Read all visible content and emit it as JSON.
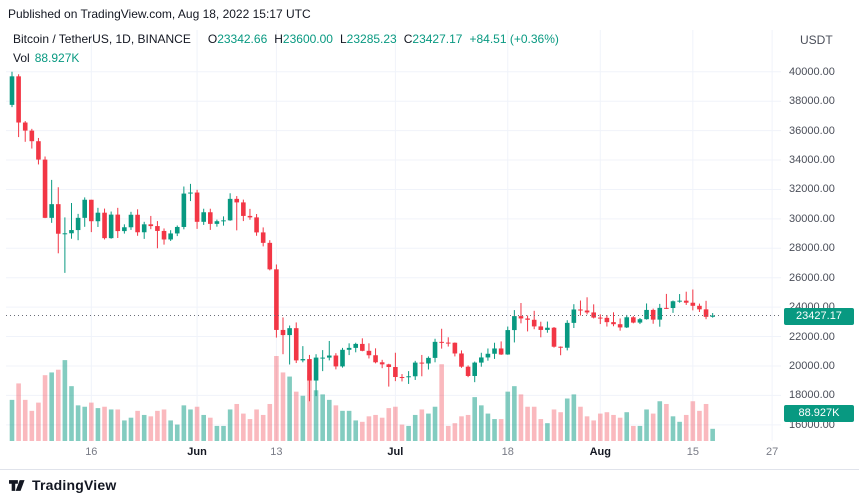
{
  "published_line": "Published on TradingView.com, Aug 18, 2022 15:17 UTC",
  "header": {
    "symbol_title": "Bitcoin / TetherUS, 1D, BINANCE",
    "ohlc": {
      "o_label": "O",
      "o": "23342.66",
      "h_label": "H",
      "h": "23600.00",
      "l_label": "L",
      "l": "23285.23",
      "c_label": "C",
      "c": "23427.17",
      "change": "+84.51 (+0.36%)"
    },
    "vol_label": "Vol",
    "vol_value": "88.927K",
    "quote_currency": "USDT"
  },
  "badges": {
    "last_price": "23427.17",
    "volume": "88.927K"
  },
  "footer": {
    "brand": "TradingView"
  },
  "colors": {
    "up": "#089981",
    "down": "#f23645",
    "vol_up": "rgba(8,153,129,0.50)",
    "vol_down": "rgba(242,54,69,0.35)",
    "grid": "#f0f3fa",
    "dotted_line": "#6a6d78",
    "axis_text": "#4a4e59",
    "badge_text": "#ffffff"
  },
  "chart_data": {
    "type": "candlestick",
    "title": "Bitcoin / TetherUS, 1D, BINANCE",
    "symbol": "BTC/USDT",
    "exchange": "BINANCE",
    "interval": "1D",
    "quote_currency": "USDT",
    "last_price": 23427.17,
    "last_volume_k": 88.927,
    "volume_units": "K",
    "y_axis": {
      "scale_min": 14900,
      "scale_max": 40800,
      "ticks": [
        {
          "value": 40000,
          "label": "40000.00"
        },
        {
          "value": 38000,
          "label": "38000.00"
        },
        {
          "value": 36000,
          "label": "36000.00"
        },
        {
          "value": 34000,
          "label": "34000.00"
        },
        {
          "value": 32000,
          "label": "32000.00"
        },
        {
          "value": 30000,
          "label": "30000.00"
        },
        {
          "value": 28000,
          "label": "28000.00"
        },
        {
          "value": 26000,
          "label": "26000.00"
        },
        {
          "value": 24000,
          "label": "24000.00"
        },
        {
          "value": 22000,
          "label": "22000.00"
        },
        {
          "value": 20000,
          "label": "20000.00"
        },
        {
          "value": 18000,
          "label": "18000.00"
        },
        {
          "value": 16000,
          "label": "16000.00"
        }
      ]
    },
    "x_ticks": [
      {
        "label": "16",
        "day_index": 12,
        "strong": false
      },
      {
        "label": "Jun",
        "day_index": 28,
        "strong": true
      },
      {
        "label": "13",
        "day_index": 40,
        "strong": false
      },
      {
        "label": "Jul",
        "day_index": 58,
        "strong": true
      },
      {
        "label": "18",
        "day_index": 75,
        "strong": false
      },
      {
        "label": "Aug",
        "day_index": 89,
        "strong": true
      },
      {
        "label": "15",
        "day_index": 103,
        "strong": false
      },
      {
        "label": "27",
        "day_index": 115,
        "strong": false
      }
    ],
    "columns": [
      "date",
      "open",
      "high",
      "low",
      "close",
      "volume_k"
    ],
    "candles": [
      [
        "2022-05-04",
        37750,
        40000,
        37600,
        39690,
        300
      ],
      [
        "2022-05-05",
        39690,
        39830,
        35560,
        36550,
        420
      ],
      [
        "2022-05-06",
        36550,
        36650,
        35240,
        36000,
        300
      ],
      [
        "2022-05-07",
        36000,
        36120,
        34780,
        35280,
        220
      ],
      [
        "2022-05-08",
        35280,
        35500,
        33700,
        34030,
        280
      ],
      [
        "2022-05-09",
        34030,
        34240,
        30050,
        30070,
        480
      ],
      [
        "2022-05-10",
        30070,
        32650,
        29730,
        31000,
        500
      ],
      [
        "2022-05-11",
        31000,
        32150,
        27660,
        28990,
        520
      ],
      [
        "2022-05-12",
        28990,
        30100,
        26330,
        29020,
        590
      ],
      [
        "2022-05-13",
        29020,
        31080,
        28650,
        29240,
        400
      ],
      [
        "2022-05-14",
        29240,
        30340,
        28550,
        30070,
        260
      ],
      [
        "2022-05-15",
        30070,
        31460,
        29460,
        31300,
        250
      ],
      [
        "2022-05-16",
        31300,
        31300,
        29100,
        29840,
        280
      ],
      [
        "2022-05-17",
        29840,
        30750,
        29450,
        30420,
        240
      ],
      [
        "2022-05-18",
        30420,
        30700,
        28600,
        28690,
        250
      ],
      [
        "2022-05-19",
        28690,
        30500,
        28650,
        30290,
        230
      ],
      [
        "2022-05-20",
        30290,
        30750,
        28700,
        29170,
        230
      ],
      [
        "2022-05-21",
        29170,
        29630,
        29000,
        29430,
        150
      ],
      [
        "2022-05-22",
        29430,
        30480,
        29250,
        30280,
        170
      ],
      [
        "2022-05-23",
        30280,
        30650,
        28850,
        29090,
        220
      ],
      [
        "2022-05-24",
        29090,
        29800,
        28640,
        29630,
        190
      ],
      [
        "2022-05-25",
        29630,
        30200,
        29300,
        29510,
        180
      ],
      [
        "2022-05-26",
        29510,
        29850,
        28000,
        29180,
        220
      ],
      [
        "2022-05-27",
        29180,
        29350,
        28250,
        28600,
        230
      ],
      [
        "2022-05-28",
        28600,
        29230,
        28500,
        29010,
        150
      ],
      [
        "2022-05-29",
        29010,
        29550,
        28830,
        29450,
        120
      ],
      [
        "2022-05-30",
        29450,
        32200,
        29290,
        31720,
        260
      ],
      [
        "2022-05-31",
        31720,
        32380,
        31210,
        31790,
        230
      ],
      [
        "2022-06-01",
        31790,
        31980,
        29320,
        29800,
        250
      ],
      [
        "2022-06-02",
        29800,
        30690,
        29590,
        30450,
        190
      ],
      [
        "2022-06-03",
        30450,
        30690,
        29250,
        29660,
        170
      ],
      [
        "2022-06-04",
        29660,
        29950,
        29470,
        29840,
        110
      ],
      [
        "2022-06-05",
        29840,
        30170,
        29540,
        29900,
        110
      ],
      [
        "2022-06-06",
        29900,
        31740,
        29870,
        31360,
        230
      ],
      [
        "2022-06-07",
        31360,
        31550,
        29220,
        31120,
        270
      ],
      [
        "2022-06-08",
        31120,
        31310,
        29850,
        30200,
        200
      ],
      [
        "2022-06-09",
        30200,
        30680,
        29940,
        30100,
        160
      ],
      [
        "2022-06-10",
        30100,
        30330,
        28850,
        29080,
        230
      ],
      [
        "2022-06-11",
        29080,
        29420,
        28130,
        28370,
        190
      ],
      [
        "2022-06-12",
        28370,
        28550,
        26500,
        26570,
        270
      ],
      [
        "2022-06-13",
        26570,
        26900,
        21930,
        22450,
        620
      ],
      [
        "2022-06-14",
        22450,
        23300,
        20800,
        22100,
        500
      ],
      [
        "2022-06-15",
        22100,
        22750,
        20100,
        22570,
        470
      ],
      [
        "2022-06-16",
        22570,
        22960,
        20200,
        20380,
        360
      ],
      [
        "2022-06-17",
        20380,
        21350,
        20250,
        20470,
        330
      ],
      [
        "2022-06-18",
        20470,
        20750,
        17600,
        19010,
        480
      ],
      [
        "2022-06-19",
        19010,
        20800,
        17950,
        20570,
        370
      ],
      [
        "2022-06-20",
        20570,
        21080,
        19650,
        20570,
        340
      ],
      [
        "2022-06-21",
        20570,
        21700,
        20380,
        20710,
        300
      ],
      [
        "2022-06-22",
        20710,
        20870,
        19770,
        19970,
        260
      ],
      [
        "2022-06-23",
        19970,
        21230,
        19890,
        21100,
        220
      ],
      [
        "2022-06-24",
        21100,
        21540,
        20740,
        21230,
        220
      ],
      [
        "2022-06-25",
        21230,
        21580,
        20930,
        21500,
        150
      ],
      [
        "2022-06-26",
        21500,
        21880,
        21000,
        21030,
        140
      ],
      [
        "2022-06-27",
        21030,
        21540,
        20510,
        20730,
        180
      ],
      [
        "2022-06-28",
        20730,
        21200,
        20180,
        20250,
        190
      ],
      [
        "2022-06-29",
        20250,
        20420,
        19850,
        20110,
        170
      ],
      [
        "2022-06-30",
        20110,
        20150,
        18600,
        19930,
        240
      ],
      [
        "2022-07-01",
        19930,
        20900,
        18970,
        19250,
        250
      ],
      [
        "2022-07-02",
        19250,
        19450,
        18950,
        19240,
        120
      ],
      [
        "2022-07-03",
        19240,
        19650,
        18780,
        19300,
        110
      ],
      [
        "2022-07-04",
        19300,
        20350,
        19050,
        20230,
        190
      ],
      [
        "2022-07-05",
        20230,
        20750,
        19300,
        20170,
        230
      ],
      [
        "2022-07-06",
        20170,
        20650,
        19760,
        20550,
        200
      ],
      [
        "2022-07-07",
        20550,
        21850,
        20250,
        21640,
        250
      ],
      [
        "2022-07-08",
        21640,
        22530,
        21180,
        21590,
        560
      ],
      [
        "2022-07-09",
        21590,
        21950,
        21320,
        21580,
        110
      ],
      [
        "2022-07-10",
        21580,
        21600,
        20650,
        20850,
        130
      ],
      [
        "2022-07-11",
        20850,
        21060,
        19875,
        19950,
        180
      ],
      [
        "2022-07-12",
        19950,
        20040,
        19240,
        19320,
        190
      ],
      [
        "2022-07-13",
        19320,
        20300,
        18900,
        20230,
        320
      ],
      [
        "2022-07-14",
        20230,
        20900,
        19950,
        20580,
        260
      ],
      [
        "2022-07-15",
        20580,
        21190,
        20360,
        20830,
        200
      ],
      [
        "2022-07-16",
        20830,
        21580,
        20480,
        21190,
        160
      ],
      [
        "2022-07-17",
        21190,
        21670,
        20750,
        20780,
        160
      ],
      [
        "2022-07-18",
        20780,
        22680,
        20760,
        22440,
        360
      ],
      [
        "2022-07-19",
        22440,
        23800,
        21600,
        23390,
        400
      ],
      [
        "2022-07-20",
        23390,
        24280,
        22900,
        23230,
        340
      ],
      [
        "2022-07-21",
        23230,
        23430,
        22350,
        23140,
        250
      ],
      [
        "2022-07-22",
        23140,
        23750,
        22500,
        22690,
        250
      ],
      [
        "2022-07-23",
        22690,
        23010,
        21950,
        22450,
        160
      ],
      [
        "2022-07-24",
        22450,
        23020,
        22260,
        22600,
        130
      ],
      [
        "2022-07-25",
        22600,
        22650,
        21250,
        21310,
        230
      ],
      [
        "2022-07-26",
        21310,
        21330,
        20730,
        21240,
        210
      ],
      [
        "2022-07-27",
        21240,
        23110,
        21060,
        22930,
        310
      ],
      [
        "2022-07-28",
        22930,
        24200,
        22580,
        23840,
        340
      ],
      [
        "2022-07-29",
        23840,
        24450,
        23430,
        23770,
        250
      ],
      [
        "2022-07-30",
        23770,
        24670,
        23510,
        23640,
        180
      ],
      [
        "2022-07-31",
        23640,
        24190,
        23230,
        23290,
        150
      ],
      [
        "2022-08-01",
        23290,
        23510,
        22850,
        23270,
        200
      ],
      [
        "2022-08-02",
        23270,
        23460,
        22680,
        22980,
        210
      ],
      [
        "2022-08-03",
        22980,
        23650,
        22700,
        22840,
        190
      ],
      [
        "2022-08-04",
        22840,
        23230,
        22400,
        22620,
        170
      ],
      [
        "2022-08-05",
        22620,
        23470,
        22580,
        23310,
        210
      ],
      [
        "2022-08-06",
        23310,
        23390,
        22900,
        22950,
        110
      ],
      [
        "2022-08-07",
        22950,
        23260,
        22850,
        23180,
        110
      ],
      [
        "2022-08-08",
        23180,
        24250,
        23150,
        23810,
        230
      ],
      [
        "2022-08-09",
        23810,
        23900,
        22870,
        23150,
        200
      ],
      [
        "2022-08-10",
        23150,
        24220,
        22670,
        23950,
        290
      ],
      [
        "2022-08-11",
        23950,
        24900,
        23870,
        23940,
        270
      ],
      [
        "2022-08-12",
        23940,
        24450,
        23610,
        24400,
        180
      ],
      [
        "2022-08-13",
        24400,
        24890,
        24300,
        24440,
        140
      ],
      [
        "2022-08-14",
        24440,
        25050,
        24150,
        24300,
        190
      ],
      [
        "2022-08-15",
        24300,
        25200,
        23780,
        24090,
        290
      ],
      [
        "2022-08-16",
        24090,
        24240,
        23670,
        23850,
        220
      ],
      [
        "2022-08-17",
        23850,
        24430,
        23180,
        23340,
        270
      ],
      [
        "2022-08-18",
        23342.66,
        23600.0,
        23285.23,
        23427.17,
        88.927
      ]
    ]
  }
}
